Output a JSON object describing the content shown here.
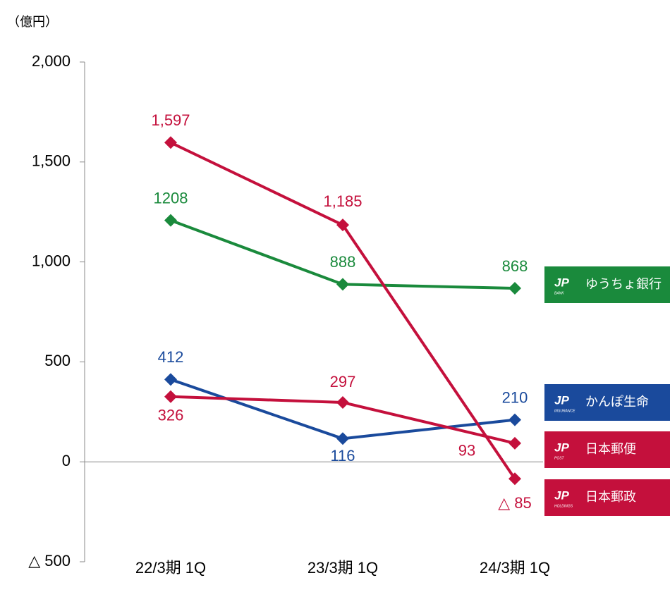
{
  "chart_data": {
    "type": "line",
    "unit_label": "（億円）",
    "logo_text": "JP",
    "categories": [
      "22/3期 1Q",
      "23/3期 1Q",
      "24/3期 1Q"
    ],
    "series": [
      {
        "name": "ゆうちょ銀行",
        "sublogo": "BANK",
        "color": "#1a8a3c",
        "values": [
          1208,
          888,
          868
        ]
      },
      {
        "name": "かんぽ生命",
        "sublogo": "INSURANCE",
        "color": "#1a4a9c",
        "values": [
          412,
          116,
          210
        ]
      },
      {
        "name": "日本郵便",
        "sublogo": "POST",
        "color": "#c4103c",
        "values": [
          326,
          297,
          93
        ]
      },
      {
        "name": "日本郵政",
        "sublogo": "HOLDINGS",
        "color": "#c4103c",
        "values": [
          1597,
          1185,
          -85
        ],
        "value_labels": [
          "1,597",
          "1,185",
          "△ 85"
        ]
      }
    ],
    "ylim": [
      -500,
      2000
    ],
    "yticks": [
      {
        "value": -500,
        "label": "△ 500"
      },
      0,
      500,
      {
        "value": 1000,
        "label": "1,000"
      },
      {
        "value": 1500,
        "label": "1,500"
      },
      {
        "value": 2000,
        "label": "2,000"
      }
    ]
  }
}
